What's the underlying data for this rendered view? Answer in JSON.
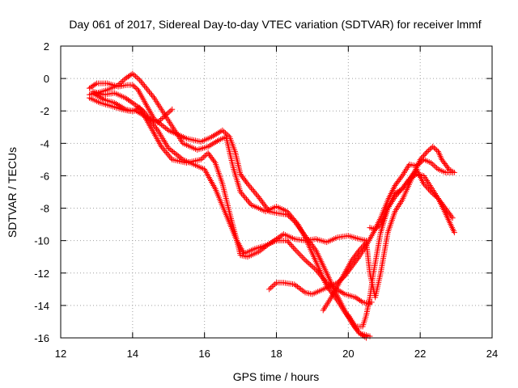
{
  "chart_data": {
    "type": "scatter",
    "title": "Day 061 of 2017, Sidereal Day-to-day VTEC variation (SDTVAR) for receiver lmmf",
    "xlabel": "GPS time / hours",
    "ylabel": "SDTVAR / TECUs",
    "xlim": [
      12,
      24
    ],
    "ylim": [
      -16,
      2
    ],
    "xticks": [
      12,
      14,
      16,
      18,
      20,
      22,
      24
    ],
    "yticks": [
      2,
      0,
      -2,
      -4,
      -6,
      -8,
      -10,
      -12,
      -14,
      -16
    ],
    "grid": true,
    "marker": "plus",
    "color": "#ff0000",
    "series": [
      {
        "name": "track-1",
        "x": [
          12.8,
          13.0,
          13.3,
          13.6,
          13.85,
          14.0,
          14.15,
          14.3,
          14.6,
          15.0,
          15.5,
          15.9,
          16.2,
          16.5,
          16.7,
          16.85,
          17.0,
          17.2,
          17.5,
          17.8,
          18.0,
          18.3,
          18.5,
          18.8,
          19.1,
          19.4,
          19.6,
          19.9,
          20.1,
          20.3,
          20.6
        ],
        "y": [
          -0.6,
          -0.3,
          -0.3,
          -0.5,
          -0.4,
          -0.4,
          -0.7,
          -1.3,
          -2.5,
          -3.2,
          -3.7,
          -3.9,
          -3.6,
          -3.2,
          -3.6,
          -4.5,
          -5.9,
          -6.5,
          -7.3,
          -8.2,
          -8.3,
          -8.4,
          -8.8,
          -9.7,
          -10.6,
          -12.0,
          -13.0,
          -14.3,
          -15.1,
          -15.7,
          -15.9
        ]
      },
      {
        "name": "track-2",
        "x": [
          12.8,
          13.0,
          13.3,
          13.6,
          13.8,
          14.0,
          14.2,
          14.6,
          15.0,
          15.4,
          15.8,
          16.1,
          16.4,
          16.6,
          16.8,
          17.0,
          17.3,
          17.7,
          18.0,
          18.3,
          18.6,
          18.8,
          19.1,
          19.4,
          19.7,
          19.9,
          20.1,
          20.3,
          20.5
        ],
        "y": [
          -1.0,
          -0.9,
          -0.7,
          -0.4,
          0.0,
          0.3,
          -0.1,
          -1.2,
          -2.6,
          -4.0,
          -4.4,
          -4.2,
          -3.8,
          -3.6,
          -5.5,
          -7.0,
          -7.8,
          -8.2,
          -7.9,
          -8.2,
          -9.0,
          -9.8,
          -11.3,
          -12.8,
          -13.7,
          -14.4,
          -15.0,
          -15.7,
          -16.0
        ]
      },
      {
        "name": "track-3",
        "x": [
          12.9,
          13.2,
          13.5,
          13.8,
          14.0,
          14.2,
          14.5,
          14.8,
          15.1,
          15.5,
          15.9,
          16.1,
          16.3,
          16.5,
          16.7,
          16.9,
          17.0,
          17.2,
          17.5,
          17.8,
          18.0,
          18.2,
          18.5,
          18.8,
          19.1,
          19.4,
          19.7,
          20.0,
          20.3,
          20.5
        ],
        "y": [
          -0.9,
          -1.3,
          -1.5,
          -1.9,
          -2.0,
          -1.8,
          -3.0,
          -4.2,
          -5.0,
          -5.2,
          -5.0,
          -4.6,
          -5.2,
          -6.5,
          -8.3,
          -10.0,
          -10.9,
          -11.0,
          -10.7,
          -10.2,
          -9.9,
          -9.6,
          -9.9,
          -10.0,
          -9.9,
          -10.1,
          -9.8,
          -9.7,
          -9.9,
          -10.0
        ]
      },
      {
        "name": "track-4",
        "x": [
          12.9,
          13.2,
          13.5,
          13.8,
          14.0,
          14.3,
          14.7,
          15.0,
          15.4,
          15.8,
          16.0,
          16.3,
          16.6,
          16.9,
          17.1,
          17.4,
          17.7,
          18.0,
          18.3,
          18.5,
          18.8,
          19.1,
          19.4,
          19.6,
          19.9,
          20.2,
          20.4,
          20.6,
          20.65
        ],
        "y": [
          -0.8,
          -1.0,
          -0.9,
          -1.2,
          -1.5,
          -2.0,
          -3.2,
          -4.3,
          -5.0,
          -5.4,
          -5.6,
          -6.8,
          -8.4,
          -10.0,
          -10.8,
          -10.5,
          -10.3,
          -10.0,
          -10.0,
          -10.5,
          -11.2,
          -11.8,
          -12.6,
          -12.9,
          -13.3,
          -13.5,
          -13.8,
          -13.9,
          -13.8
        ]
      },
      {
        "name": "track-5",
        "x": [
          12.8,
          13.1,
          13.4,
          13.7,
          13.9,
          14.1,
          14.4,
          14.7,
          14.9,
          15.1
        ],
        "y": [
          -1.2,
          -1.5,
          -1.7,
          -1.9,
          -2.0,
          -2.0,
          -2.4,
          -2.7,
          -2.3,
          -1.9
        ]
      },
      {
        "name": "track-6",
        "x": [
          17.8,
          18.0,
          18.2,
          18.5,
          18.8,
          19.0,
          19.3,
          19.5,
          19.7,
          19.9,
          20.1,
          20.3,
          20.5,
          20.7,
          20.9,
          21.1,
          21.3,
          21.5,
          21.7,
          21.9,
          22.1,
          22.3,
          22.5,
          22.7,
          22.9
        ],
        "y": [
          -13.0,
          -12.6,
          -12.6,
          -12.7,
          -13.2,
          -13.3,
          -13.0,
          -12.8,
          -12.6,
          -12.2,
          -11.6,
          -11.0,
          -10.3,
          -9.5,
          -8.6,
          -7.5,
          -6.6,
          -6.0,
          -5.3,
          -5.4,
          -5.0,
          -5.2,
          -5.6,
          -5.8,
          -5.8
        ]
      },
      {
        "name": "track-7",
        "x": [
          19.3,
          19.5,
          19.7,
          19.9,
          20.1,
          20.3,
          20.5,
          20.6,
          20.75,
          20.9,
          21.1,
          21.3,
          21.5,
          21.8,
          22.0,
          22.2,
          22.35,
          22.5,
          22.6,
          22.8,
          22.95
        ],
        "y": [
          -14.3,
          -13.6,
          -12.8,
          -12.0,
          -11.2,
          -10.6,
          -10.1,
          -12.0,
          -13.5,
          -12.0,
          -9.5,
          -8.2,
          -7.5,
          -6.0,
          -5.0,
          -4.5,
          -4.2,
          -4.5,
          -5.0,
          -5.6,
          -5.8
        ]
      },
      {
        "name": "track-8",
        "x": [
          20.0,
          20.2,
          20.4,
          20.5,
          20.6,
          20.7,
          20.9,
          21.1,
          21.3,
          21.5,
          21.7,
          21.9,
          22.1,
          22.3,
          22.5,
          22.7,
          22.9
        ],
        "y": [
          -14.6,
          -15.3,
          -15.3,
          -14.6,
          -13.5,
          -12.0,
          -9.5,
          -8.0,
          -7.3,
          -6.8,
          -6.2,
          -5.6,
          -6.5,
          -7.0,
          -7.4,
          -8.0,
          -8.6
        ]
      },
      {
        "name": "track-9",
        "x": [
          20.6,
          20.75,
          20.9,
          21.1,
          21.3,
          21.5,
          21.7,
          21.9,
          22.1,
          22.3,
          22.5,
          22.7,
          22.95
        ],
        "y": [
          -9.2,
          -9.3,
          -9.0,
          -8.0,
          -7.1,
          -6.8,
          -6.2,
          -5.9,
          -6.0,
          -6.7,
          -7.4,
          -8.3,
          -9.5
        ]
      }
    ]
  }
}
